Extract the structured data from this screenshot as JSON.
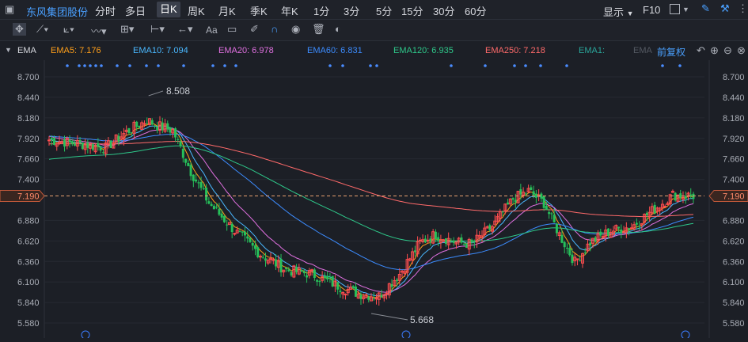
{
  "toolbar": {
    "stock_name": "东风集团股份",
    "tabs": [
      "分时",
      "多日",
      "日K",
      "周K",
      "月K",
      "季K",
      "年K",
      "1分",
      "3分",
      "5分",
      "15分",
      "30分",
      "60分"
    ],
    "active_tab": "日K",
    "display_label": "显示",
    "f10_label": "F10"
  },
  "drawbar": {
    "text_tool_label": "Aa"
  },
  "ema_bar": {
    "label": "EMA",
    "items": [
      {
        "text": "EMA5: 7.176",
        "color": "#ff9f1a"
      },
      {
        "text": "EMA10: 7.094",
        "color": "#4ab8ff"
      },
      {
        "text": "EMA20: 6.978",
        "color": "#e070e0"
      },
      {
        "text": "EMA60: 6.831",
        "color": "#3c8cff"
      },
      {
        "text": "EMA120: 6.935",
        "color": "#2ec88a"
      },
      {
        "text": "EMA250: 7.218",
        "color": "#ff6a6a"
      },
      {
        "text": "EMA1:",
        "color": "#2aa59a"
      },
      {
        "text": "EMA",
        "color": "#555a63"
      }
    ],
    "adjust_label": "前复权"
  },
  "chart_data": {
    "type": "candlestick",
    "y_ticks": [
      "8.700",
      "8.440",
      "8.180",
      "7.920",
      "7.660",
      "7.400",
      "7.190",
      "6.880",
      "6.620",
      "6.360",
      "6.100",
      "5.840",
      "5.580"
    ],
    "ylim": [
      5.5,
      8.8
    ],
    "current_price": "7.190",
    "annotations": [
      {
        "text": "8.508",
        "label": "high"
      },
      {
        "text": "5.668",
        "label": "low"
      }
    ],
    "colors": {
      "up": "#ff4d4f",
      "down": "#26c05a",
      "price_line": "#e8a070"
    }
  }
}
